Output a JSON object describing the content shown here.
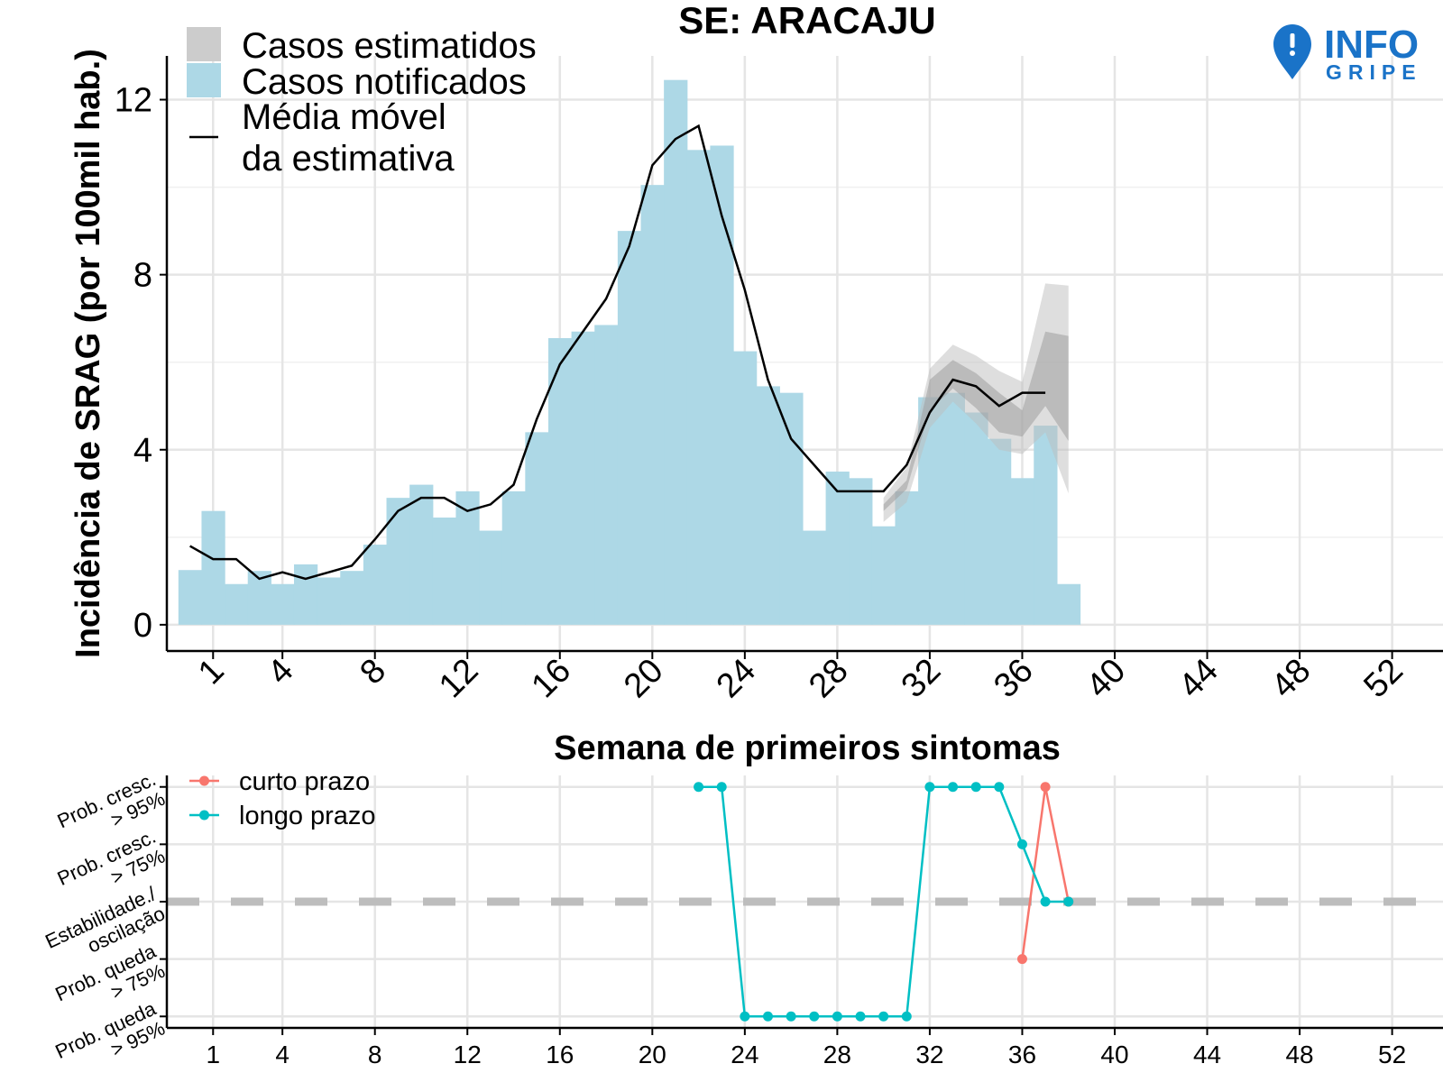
{
  "chart_data": [
    {
      "type": "bar",
      "title": "SE: ARACAJU",
      "xlabel": "Semana de primeiros sintomas",
      "ylabel": "Incidência de SRAG (por 100mil hab.)",
      "xlim": [
        -1,
        54.2
      ],
      "ylim": [
        -0.6,
        13.0
      ],
      "x_ticks": [
        1,
        4,
        8,
        12,
        16,
        20,
        24,
        28,
        32,
        36,
        40,
        44,
        48,
        52
      ],
      "y_ticks": [
        0,
        4,
        8,
        12
      ],
      "y_tick_labels": [
        "0",
        "4",
        "8",
        "12"
      ],
      "grid": true,
      "legend_position": "top-left",
      "legend": {
        "estimated": "Casos estimatidos",
        "notified": "Casos notificados",
        "moving_avg_line1": "Média móvel",
        "moving_avg_line2": "da estimativa"
      },
      "colors": {
        "notified": "#add8e6",
        "estimated": "#cccccc",
        "moving_avg": "#000000"
      },
      "notified": {
        "weeks": [
          0,
          1,
          2,
          3,
          4,
          5,
          6,
          7,
          8,
          9,
          10,
          11,
          12,
          13,
          14,
          15,
          16,
          17,
          18,
          19,
          20,
          21,
          22,
          23,
          24,
          25,
          26,
          27,
          28,
          29,
          30,
          31,
          32,
          33,
          34,
          35,
          36,
          37,
          38
        ],
        "values": [
          1.25,
          2.6,
          0.93,
          1.23,
          0.93,
          1.38,
          1.08,
          1.23,
          1.83,
          2.9,
          3.2,
          2.45,
          3.05,
          2.15,
          3.05,
          4.4,
          6.55,
          6.7,
          6.85,
          9.0,
          10.05,
          12.45,
          10.85,
          10.95,
          6.25,
          5.45,
          5.3,
          2.15,
          3.5,
          3.35,
          2.25,
          3.05,
          5.2,
          5.3,
          4.85,
          4.25,
          3.35,
          4.55,
          0.93
        ]
      },
      "moving_average": {
        "weeks": [
          0,
          1,
          2,
          3,
          4,
          5,
          6,
          7,
          8,
          9,
          10,
          11,
          12,
          13,
          14,
          15,
          16,
          17,
          18,
          19,
          20,
          21,
          22,
          23,
          24,
          25,
          26,
          27,
          28,
          29,
          30,
          31,
          32,
          33,
          34,
          35,
          36,
          37
        ],
        "values": [
          1.8,
          1.5,
          1.5,
          1.05,
          1.2,
          1.05,
          1.2,
          1.35,
          1.95,
          2.6,
          2.9,
          2.9,
          2.6,
          2.75,
          3.2,
          4.7,
          5.95,
          6.7,
          7.45,
          8.65,
          10.5,
          11.1,
          11.4,
          9.35,
          7.65,
          5.6,
          4.25,
          3.65,
          3.05,
          3.05,
          3.05,
          3.65,
          4.85,
          5.6,
          5.45,
          5.0,
          5.3,
          5.3
        ]
      },
      "estimate_band_outer": {
        "weeks": [
          30,
          31,
          32,
          33,
          34,
          35,
          36,
          37,
          38
        ],
        "lower": [
          2.35,
          2.8,
          4.5,
          5.1,
          4.6,
          4.0,
          3.9,
          4.4,
          3.0
        ],
        "upper": [
          2.9,
          3.6,
          5.85,
          6.4,
          6.15,
          5.8,
          5.55,
          7.8,
          7.75
        ]
      },
      "estimate_band_inner": {
        "weeks": [
          30,
          31,
          32,
          33,
          34,
          35,
          36,
          37,
          38
        ],
        "lower": [
          2.6,
          3.1,
          4.9,
          5.4,
          4.95,
          4.4,
          4.3,
          5.0,
          4.2
        ],
        "upper": [
          2.75,
          3.3,
          5.6,
          6.05,
          5.75,
          5.3,
          4.9,
          6.7,
          6.6
        ]
      }
    },
    {
      "type": "line",
      "xlabel": "",
      "ylabel": "",
      "xlim": [
        -1,
        54.2
      ],
      "ylim": [
        -2.2,
        2.2
      ],
      "x_ticks": [
        1,
        4,
        8,
        12,
        16,
        20,
        24,
        28,
        32,
        36,
        40,
        44,
        48,
        52
      ],
      "y_levels": [
        2,
        1,
        0,
        -1,
        -2
      ],
      "y_tick_labels": [
        [
          "Prob. cresc.",
          "> 95%"
        ],
        [
          "Prob. cresc.",
          "> 75%"
        ],
        [
          "Estabilidade./",
          "oscilação"
        ],
        [
          "Prob. queda",
          "> 75%"
        ],
        [
          "Prob. queda",
          "> 95%"
        ]
      ],
      "reference_line": 0,
      "grid": true,
      "legend_position": "top-left",
      "series": [
        {
          "name": "curto prazo",
          "color": "#f8766d",
          "x": [
            36,
            37,
            38
          ],
          "y": [
            -1,
            2,
            0
          ]
        },
        {
          "name": "longo prazo",
          "color": "#00bfc4",
          "x": [
            22,
            23,
            24,
            25,
            26,
            27,
            28,
            29,
            30,
            31,
            32,
            33,
            34,
            35,
            36,
            37,
            38
          ],
          "y": [
            2,
            2,
            -2,
            -2,
            -2,
            -2,
            -2,
            -2,
            -2,
            -2,
            2,
            2,
            2,
            2,
            1,
            0,
            0
          ]
        }
      ]
    }
  ],
  "logo": {
    "word_top": "INFO",
    "word_bottom": "GRIPE",
    "color": "#1a73c8",
    "icon": "map-pin-icon"
  }
}
